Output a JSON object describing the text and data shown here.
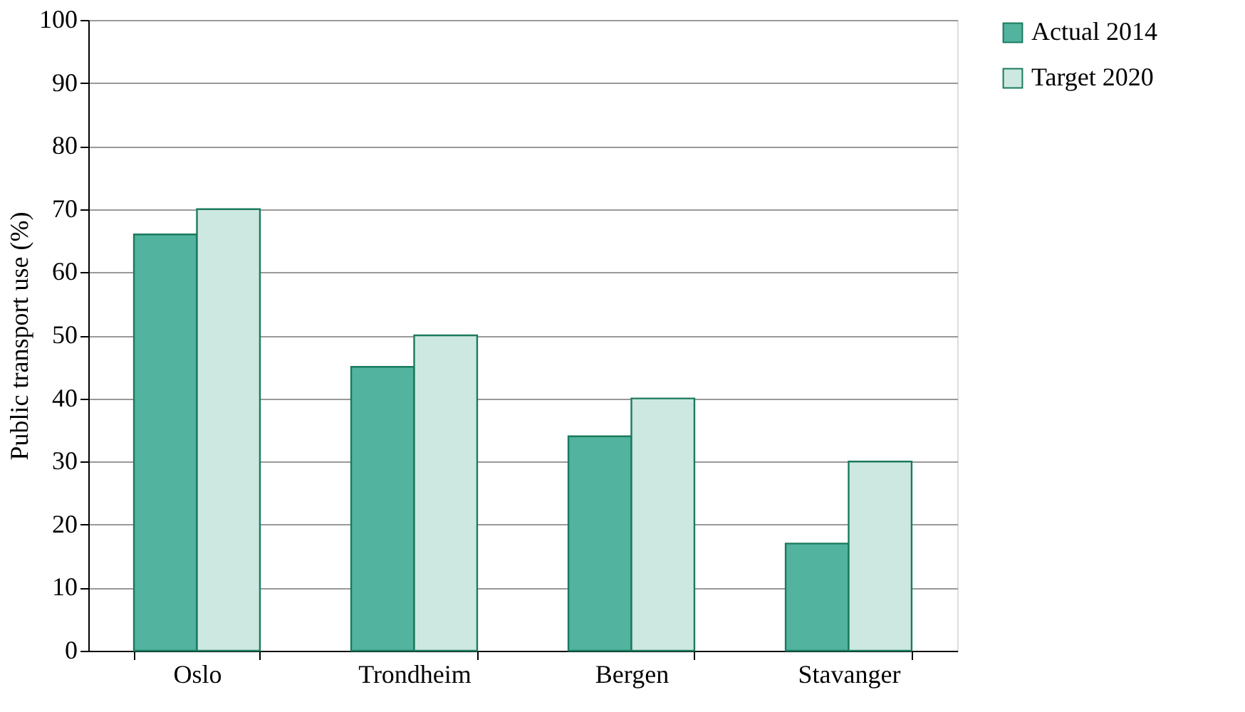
{
  "chart_data": {
    "type": "bar",
    "ylabel": "Public transport use (%)",
    "categories": [
      "Oslo",
      "Trondheim",
      "Bergen",
      "Stavanger"
    ],
    "series": [
      {
        "name": "Actual 2014",
        "color": "#52b39e",
        "values": [
          66,
          45,
          34,
          17
        ]
      },
      {
        "name": "Target 2020",
        "color": "#cde8e0",
        "values": [
          70,
          50,
          40,
          30
        ]
      }
    ],
    "ylim": [
      0,
      100
    ],
    "yticks": [
      0,
      10,
      20,
      30,
      40,
      50,
      60,
      70,
      80,
      90,
      100
    ],
    "grid": "y",
    "legend": "right"
  }
}
